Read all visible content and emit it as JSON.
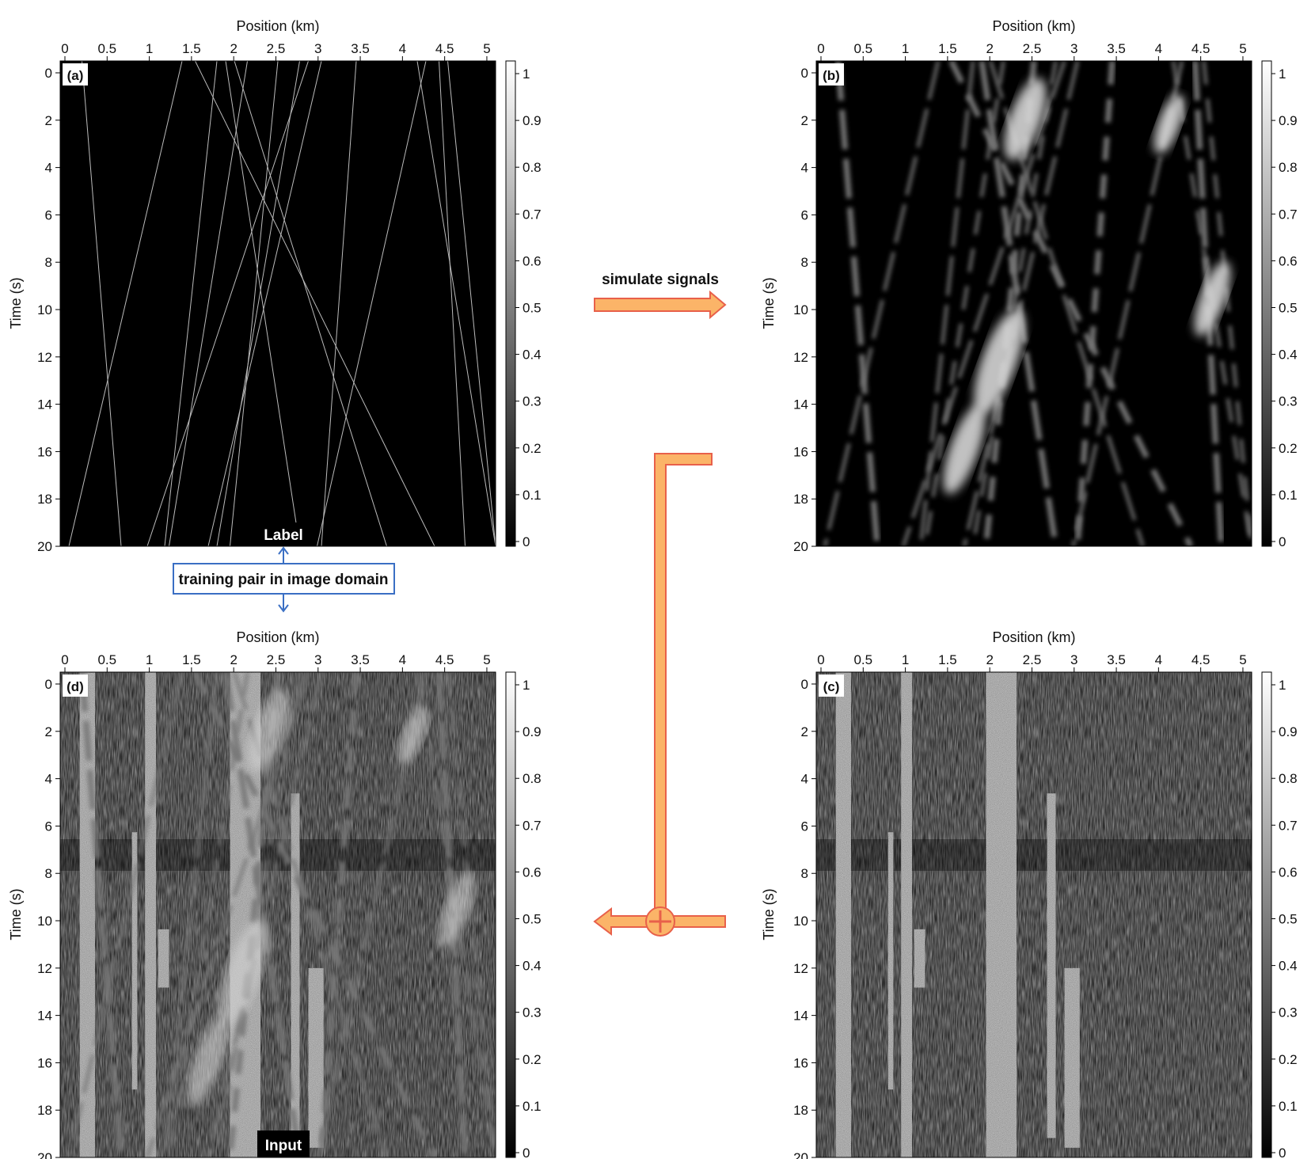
{
  "panels": [
    {
      "id": "a",
      "tag": "(a)",
      "xlabel": "Position (km)",
      "ylabel": "Time (s)"
    },
    {
      "id": "b",
      "tag": "(b)",
      "xlabel": "Position (km)",
      "ylabel": "Time (s)"
    },
    {
      "id": "d",
      "tag": "(d)",
      "xlabel": "Position (km)",
      "ylabel": "Time (s)"
    },
    {
      "id": "c",
      "tag": "(c)",
      "xlabel": "Position (km)",
      "ylabel": "Time (s)"
    }
  ],
  "xticks": [
    "0",
    "0.5",
    "1",
    "1.5",
    "2",
    "2.5",
    "3",
    "3.5",
    "4",
    "4.5",
    "5"
  ],
  "yticks": [
    "0",
    "2",
    "4",
    "6",
    "8",
    "10",
    "12",
    "14",
    "16",
    "18",
    "20"
  ],
  "cticks": [
    "0",
    "0.1",
    "0.2",
    "0.3",
    "0.4",
    "0.5",
    "0.6",
    "0.7",
    "0.8",
    "0.9",
    "1"
  ],
  "labels": {
    "label_text": "Label",
    "input_text": "Input",
    "training_pair": "training pair in image domain",
    "simulate": "simulate signals"
  },
  "colors": {
    "arrow_fill": "#fbb468",
    "arrow_stroke": "#e8604a",
    "box_stroke": "#3a6fc4"
  }
}
